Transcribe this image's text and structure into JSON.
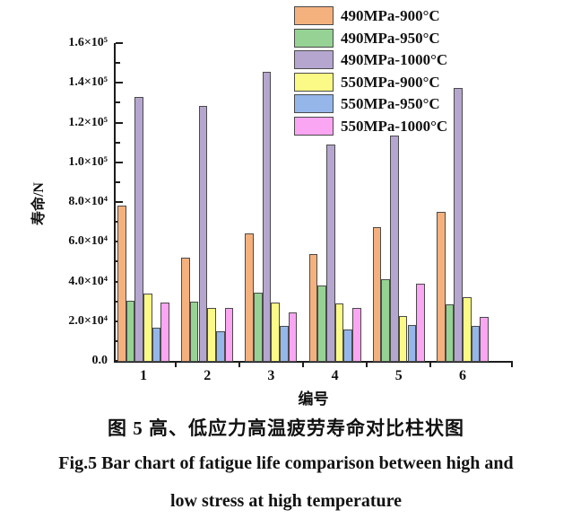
{
  "figure": {
    "caption_zh": "图 5 高、低应力高温疲劳寿命对比柱状图",
    "caption_en_line1": "Fig.5 Bar chart of fatigue life comparison between high and",
    "caption_en_line2": "low stress at high temperature"
  },
  "chart_data": {
    "type": "bar",
    "title": "",
    "xlabel": "编号",
    "ylabel": "寿命/N",
    "categories": [
      "1",
      "2",
      "3",
      "4",
      "5",
      "6"
    ],
    "series": [
      {
        "name": "490MPa-900°C",
        "color": "#F4B17E",
        "values": [
          78000,
          52000,
          64000,
          54000,
          67500,
          75000
        ]
      },
      {
        "name": "490MPa-950°C",
        "color": "#96D293",
        "values": [
          30500,
          30000,
          34500,
          38000,
          41000,
          28500
        ]
      },
      {
        "name": "490MPa-1000°C",
        "color": "#B5A6CF",
        "values": [
          133000,
          128500,
          145500,
          109000,
          113500,
          137500
        ]
      },
      {
        "name": "550MPa-900°C",
        "color": "#FBFA86",
        "values": [
          34000,
          26500,
          29500,
          29000,
          22500,
          32000
        ]
      },
      {
        "name": "550MPa-950°C",
        "color": "#94B6E9",
        "values": [
          16500,
          15000,
          17500,
          16000,
          18000,
          17500
        ]
      },
      {
        "name": "550MPa-1000°C",
        "color": "#FAA6F2",
        "values": [
          29500,
          26500,
          24500,
          26500,
          39000,
          22000
        ]
      }
    ],
    "ylim": [
      0,
      160000
    ],
    "yticks": [
      {
        "value": 0,
        "label": "0.0"
      },
      {
        "value": 20000,
        "label": "2.0×10⁴"
      },
      {
        "value": 40000,
        "label": "4.0×10⁴"
      },
      {
        "value": 60000,
        "label": "6.0×10⁴"
      },
      {
        "value": 80000,
        "label": "8.0×10⁴"
      },
      {
        "value": 100000,
        "label": "1.0×10⁵"
      },
      {
        "value": 120000,
        "label": "1.2×10⁵"
      },
      {
        "value": 140000,
        "label": "1.4×10⁵"
      },
      {
        "value": 160000,
        "label": "1.6×10⁵"
      }
    ],
    "legend_position": "top-right-inside",
    "grid": false
  }
}
